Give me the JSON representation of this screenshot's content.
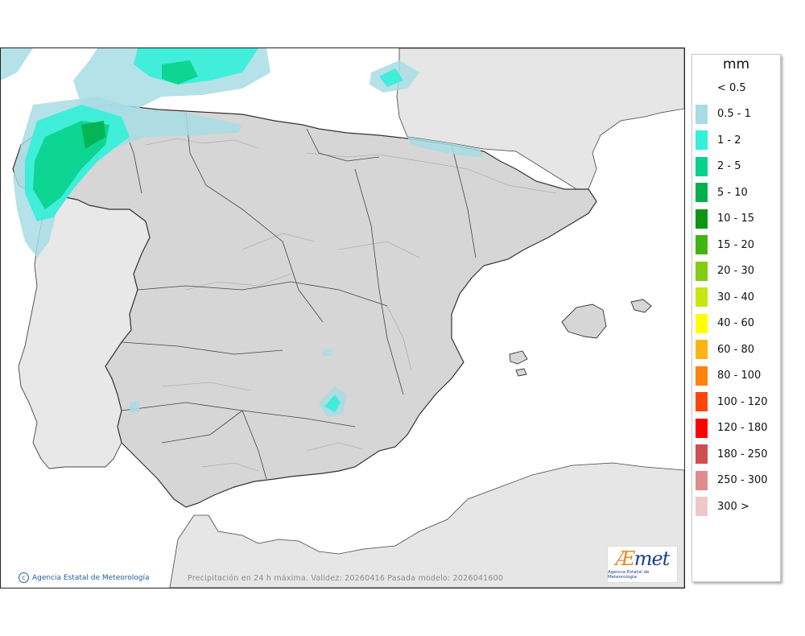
{
  "map": {
    "credit": "Agencia Estatal de Meteorología",
    "caption": "Precipitación en 24 h máxima. Validez: 20260416 Pasada modelo: 2026041600",
    "logo_word_a": "Æ",
    "logo_word_rest": "met",
    "logo_subtitle": "Agencia Estatal de Meteorología",
    "colors": {
      "sea": "#ffffff",
      "land": "#e8e8e8",
      "relief": "#d2d2d2",
      "border": "#3a3a3a"
    }
  },
  "legend": {
    "title": "mm",
    "items": [
      {
        "label": "< 0.5",
        "color": ""
      },
      {
        "label": "0.5 - 1",
        "color": "#a8dce4"
      },
      {
        "label": "1 - 2",
        "color": "#33f0d8"
      },
      {
        "label": "2 - 5",
        "color": "#08d28a"
      },
      {
        "label": "5 - 10",
        "color": "#04b04e"
      },
      {
        "label": "10 - 15",
        "color": "#0e9612"
      },
      {
        "label": "15 - 20",
        "color": "#44b414"
      },
      {
        "label": "20 - 30",
        "color": "#82cc12"
      },
      {
        "label": "30 - 40",
        "color": "#c8e614"
      },
      {
        "label": "40 - 60",
        "color": "#fefe00"
      },
      {
        "label": "60 - 80",
        "color": "#feb414"
      },
      {
        "label": "80 - 100",
        "color": "#fe8210"
      },
      {
        "label": "100 - 120",
        "color": "#fe460c"
      },
      {
        "label": "120 - 180",
        "color": "#fe0000"
      },
      {
        "label": "180 - 250",
        "color": "#cc5050"
      },
      {
        "label": "250 - 300",
        "color": "#de8c8c"
      },
      {
        "label": "300 >",
        "color": "#eec8c8"
      }
    ]
  }
}
